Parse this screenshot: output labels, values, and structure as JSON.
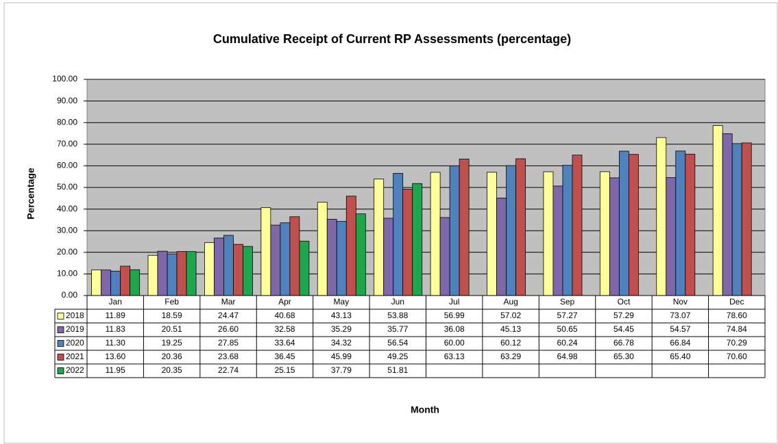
{
  "chart_data": {
    "type": "bar",
    "title": "Cumulative Receipt of Current RP Assessments (percentage)",
    "y_label": "Percentage",
    "x_label": "Month",
    "categories": [
      "Jan",
      "Feb",
      "Mar",
      "Apr",
      "May",
      "Jun",
      "Jul",
      "Aug",
      "Sep",
      "Oct",
      "Nov",
      "Dec"
    ],
    "series": [
      {
        "name": "2018",
        "color": "#ffff99",
        "values": [
          11.89,
          18.59,
          24.47,
          40.68,
          43.13,
          53.88,
          56.99,
          57.02,
          57.27,
          57.29,
          73.07,
          78.6
        ],
        "value_labels": [
          "11.89",
          "18.59",
          "24.47",
          "40.68",
          "43.13",
          "53.88",
          "56.99",
          "57.02",
          "57.27",
          "57.29",
          "73.07",
          "78.60"
        ]
      },
      {
        "name": "2019",
        "color": "#7e68aa",
        "values": [
          11.83,
          20.51,
          26.6,
          32.58,
          35.29,
          35.77,
          36.08,
          45.13,
          50.65,
          54.45,
          54.57,
          74.84
        ],
        "value_labels": [
          "11.83",
          "20.51",
          "26.60",
          "32.58",
          "35.29",
          "35.77",
          "36.08",
          "45.13",
          "50.65",
          "54.45",
          "54.57",
          "74.84"
        ]
      },
      {
        "name": "2020",
        "color": "#4f81bd",
        "values": [
          11.3,
          19.25,
          27.85,
          33.64,
          34.32,
          56.54,
          60.0,
          60.12,
          60.24,
          66.78,
          66.84,
          70.29
        ],
        "value_labels": [
          "11.30",
          "19.25",
          "27.85",
          "33.64",
          "34.32",
          "56.54",
          "60.00",
          "60.12",
          "60.24",
          "66.78",
          "66.84",
          "70.29"
        ]
      },
      {
        "name": "2021",
        "color": "#c0504d",
        "values": [
          13.6,
          20.36,
          23.68,
          36.45,
          45.99,
          49.25,
          63.13,
          63.29,
          64.98,
          65.3,
          65.4,
          70.6
        ],
        "value_labels": [
          "13.60",
          "20.36",
          "23.68",
          "36.45",
          "45.99",
          "49.25",
          "63.13",
          "63.29",
          "64.98",
          "65.30",
          "65.40",
          "70.60"
        ]
      },
      {
        "name": "2022",
        "color": "#1ea64c",
        "values": [
          11.95,
          20.35,
          22.74,
          25.15,
          37.79,
          51.81,
          null,
          null,
          null,
          null,
          null,
          null
        ],
        "value_labels": [
          "11.95",
          "20.35",
          "22.74",
          "25.15",
          "37.79",
          "51.81",
          null,
          null,
          null,
          null,
          null,
          null
        ]
      }
    ],
    "ylim": [
      0,
      100
    ],
    "yticks": [
      {
        "value": 0,
        "label": "0.00"
      },
      {
        "value": 10,
        "label": "10.00"
      },
      {
        "value": 20,
        "label": "20.00"
      },
      {
        "value": 30,
        "label": "30.00"
      },
      {
        "value": 40,
        "label": "40.00"
      },
      {
        "value": 50,
        "label": "50.00"
      },
      {
        "value": 60,
        "label": "60.00"
      },
      {
        "value": 70,
        "label": "70.00"
      },
      {
        "value": 80,
        "label": "80.00"
      },
      {
        "value": 90,
        "label": "90.00"
      },
      {
        "value": 100,
        "label": "100.00"
      }
    ],
    "grid": true
  }
}
